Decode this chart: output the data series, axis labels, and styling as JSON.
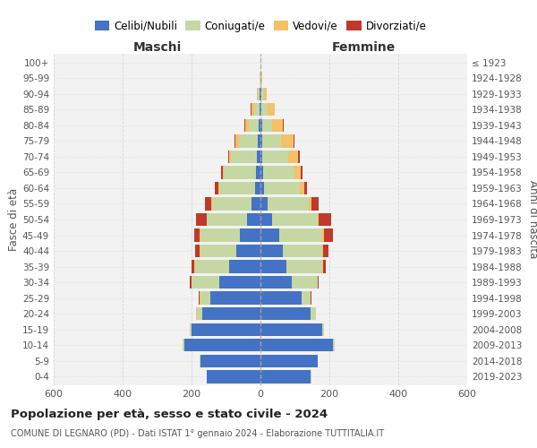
{
  "age_groups": [
    "0-4",
    "5-9",
    "10-14",
    "15-19",
    "20-24",
    "25-29",
    "30-34",
    "35-39",
    "40-44",
    "45-49",
    "50-54",
    "55-59",
    "60-64",
    "65-69",
    "70-74",
    "75-79",
    "80-84",
    "85-89",
    "90-94",
    "95-99",
    "100+"
  ],
  "birth_years": [
    "2019-2023",
    "2014-2018",
    "2009-2013",
    "2004-2008",
    "1999-2003",
    "1994-1998",
    "1989-1993",
    "1984-1988",
    "1979-1983",
    "1974-1978",
    "1969-1973",
    "1964-1968",
    "1959-1963",
    "1954-1958",
    "1949-1953",
    "1944-1948",
    "1939-1943",
    "1934-1938",
    "1929-1933",
    "1924-1928",
    "≤ 1923"
  ],
  "colors": {
    "celibi": "#4472C4",
    "coniugati": "#C5D8A4",
    "vedovi": "#F4C165",
    "divorziati": "#C0392B"
  },
  "males": {
    "celibi": [
      155,
      175,
      220,
      200,
      170,
      145,
      120,
      90,
      70,
      60,
      40,
      25,
      15,
      12,
      10,
      8,
      5,
      3,
      2,
      1,
      0
    ],
    "coniugati": [
      2,
      2,
      5,
      5,
      15,
      30,
      80,
      100,
      105,
      115,
      115,
      115,
      105,
      95,
      75,
      55,
      30,
      15,
      5,
      1,
      0
    ],
    "vedovi": [
      0,
      0,
      0,
      0,
      1,
      2,
      1,
      1,
      2,
      2,
      2,
      2,
      2,
      3,
      5,
      10,
      10,
      8,
      3,
      0,
      0
    ],
    "divorziati": [
      0,
      0,
      0,
      0,
      1,
      2,
      5,
      10,
      12,
      15,
      30,
      20,
      10,
      5,
      4,
      3,
      3,
      2,
      0,
      0,
      0
    ]
  },
  "females": {
    "celibi": [
      145,
      165,
      210,
      180,
      145,
      120,
      90,
      75,
      65,
      55,
      35,
      20,
      10,
      8,
      5,
      5,
      5,
      3,
      2,
      1,
      0
    ],
    "coniugati": [
      2,
      2,
      5,
      5,
      15,
      25,
      75,
      105,
      115,
      125,
      130,
      120,
      105,
      90,
      75,
      55,
      30,
      18,
      8,
      2,
      0
    ],
    "vedovi": [
      0,
      0,
      0,
      0,
      0,
      1,
      1,
      2,
      3,
      5,
      5,
      8,
      12,
      20,
      30,
      35,
      30,
      20,
      8,
      2,
      0
    ],
    "divorziati": [
      0,
      0,
      0,
      0,
      0,
      1,
      4,
      8,
      15,
      25,
      35,
      20,
      8,
      5,
      5,
      3,
      2,
      1,
      0,
      0,
      0
    ]
  },
  "title_main": "Popolazione per età, sesso e stato civile - 2024",
  "title_sub": "COMUNE DI LEGNARO (PD) - Dati ISTAT 1° gennaio 2024 - Elaborazione TUTTITALIA.IT",
  "xlabel_left": "Maschi",
  "xlabel_right": "Femmine",
  "ylabel_left": "Fasce di età",
  "ylabel_right": "Anni di nascita",
  "legend_labels": [
    "Celibi/Nubili",
    "Coniugati/e",
    "Vedovi/e",
    "Divorziati/e"
  ],
  "xlim": 600,
  "bg_color": "#FFFFFF",
  "plot_bg": "#F2F2F2",
  "grid_color": "#CCCCCC"
}
